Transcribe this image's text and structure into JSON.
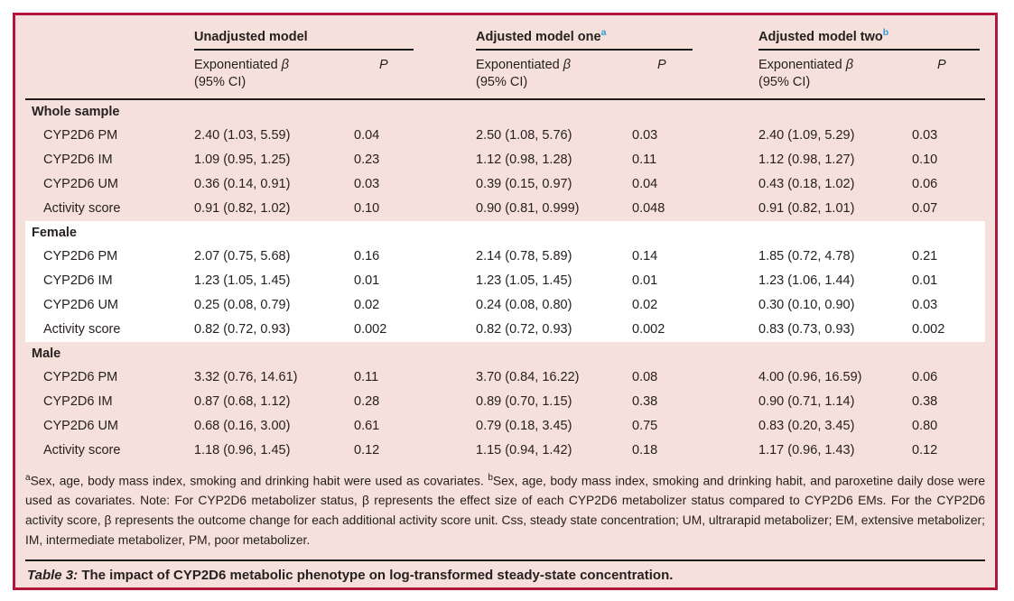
{
  "colors": {
    "panel_background": "#f6e0dc",
    "panel_border": "#b2163f",
    "highlight_band": "#ffffff",
    "rule": "#1c1c1c",
    "superscript_blue": "#2f9bd8",
    "text": "#26211f"
  },
  "header": {
    "groups": [
      {
        "label": "Unadjusted model",
        "sup": ""
      },
      {
        "label": "Adjusted model one",
        "sup": "a"
      },
      {
        "label": "Adjusted model two",
        "sup": "b"
      }
    ],
    "exp_label": "Exponentiated",
    "beta": "β",
    "ci_label": "(95% CI)",
    "p_label": "P"
  },
  "sections": [
    {
      "name": "Whole sample",
      "highlight": false,
      "rows": [
        {
          "label": "CYP2D6 PM",
          "cells": [
            "2.40 (1.03, 5.59)",
            "0.04",
            "2.50 (1.08, 5.76)",
            "0.03",
            "2.40 (1.09, 5.29)",
            "0.03"
          ]
        },
        {
          "label": "CYP2D6 IM",
          "cells": [
            "1.09 (0.95, 1.25)",
            "0.23",
            "1.12 (0.98, 1.28)",
            "0.11",
            "1.12 (0.98, 1.27)",
            "0.10"
          ]
        },
        {
          "label": "CYP2D6 UM",
          "cells": [
            "0.36 (0.14, 0.91)",
            "0.03",
            "0.39 (0.15, 0.97)",
            "0.04",
            "0.43 (0.18, 1.02)",
            "0.06"
          ]
        },
        {
          "label": "Activity score",
          "cells": [
            "0.91 (0.82, 1.02)",
            "0.10",
            "0.90 (0.81, 0.999)",
            "0.048",
            "0.91 (0.82, 1.01)",
            "0.07"
          ]
        }
      ]
    },
    {
      "name": "Female",
      "highlight": true,
      "rows": [
        {
          "label": "CYP2D6 PM",
          "cells": [
            "2.07 (0.75, 5.68)",
            "0.16",
            "2.14 (0.78, 5.89)",
            "0.14",
            "1.85 (0.72, 4.78)",
            "0.21"
          ]
        },
        {
          "label": "CYP2D6 IM",
          "cells": [
            "1.23 (1.05, 1.45)",
            "0.01",
            "1.23 (1.05, 1.45)",
            "0.01",
            "1.23 (1.06, 1.44)",
            "0.01"
          ]
        },
        {
          "label": "CYP2D6 UM",
          "cells": [
            "0.25 (0.08, 0.79)",
            "0.02",
            "0.24 (0.08, 0.80)",
            "0.02",
            "0.30 (0.10, 0.90)",
            "0.03"
          ]
        },
        {
          "label": "Activity score",
          "cells": [
            "0.82 (0.72, 0.93)",
            "0.002",
            "0.82 (0.72, 0.93)",
            "0.002",
            "0.83 (0.73, 0.93)",
            "0.002"
          ]
        }
      ]
    },
    {
      "name": "Male",
      "highlight": false,
      "rows": [
        {
          "label": "CYP2D6 PM",
          "cells": [
            "3.32 (0.76, 14.61)",
            "0.11",
            "3.70 (0.84, 16.22)",
            "0.08",
            "4.00 (0.96, 16.59)",
            "0.06"
          ]
        },
        {
          "label": "CYP2D6 IM",
          "cells": [
            "0.87 (0.68, 1.12)",
            "0.28",
            "0.89 (0.70, 1.15)",
            "0.38",
            "0.90 (0.71, 1.14)",
            "0.38"
          ]
        },
        {
          "label": "CYP2D6 UM",
          "cells": [
            "0.68 (0.16, 3.00)",
            "0.61",
            "0.79 (0.18, 3.45)",
            "0.75",
            "0.83 (0.20, 3.45)",
            "0.80"
          ]
        },
        {
          "label": "Activity score",
          "cells": [
            "1.18 (0.96, 1.45)",
            "0.12",
            "1.15 (0.94, 1.42)",
            "0.18",
            "1.17 (0.96, 1.43)",
            "0.12"
          ]
        }
      ]
    }
  ],
  "footnote": {
    "sup_a": "a",
    "part_a": "Sex, age, body mass index, smoking and drinking habit were used as covariates. ",
    "sup_b": "b",
    "part_b": "Sex, age, body mass index, smoking and drinking habit, and paroxetine daily dose were used as covariates. Note: For CYP2D6 metabolizer status, β represents the effect size of each CYP2D6 metabolizer status compared to CYP2D6 EMs. For the CYP2D6 activity score, β represents the outcome change for each additional activity score unit. Css, steady state concentration; UM, ultrarapid metabolizer; EM, extensive metabolizer; IM, intermediate metabolizer, PM, poor metabolizer."
  },
  "caption": {
    "label": "Table 3:",
    "text": "The impact of CYP2D6 metabolic phenotype on log-transformed steady-state concentration."
  }
}
